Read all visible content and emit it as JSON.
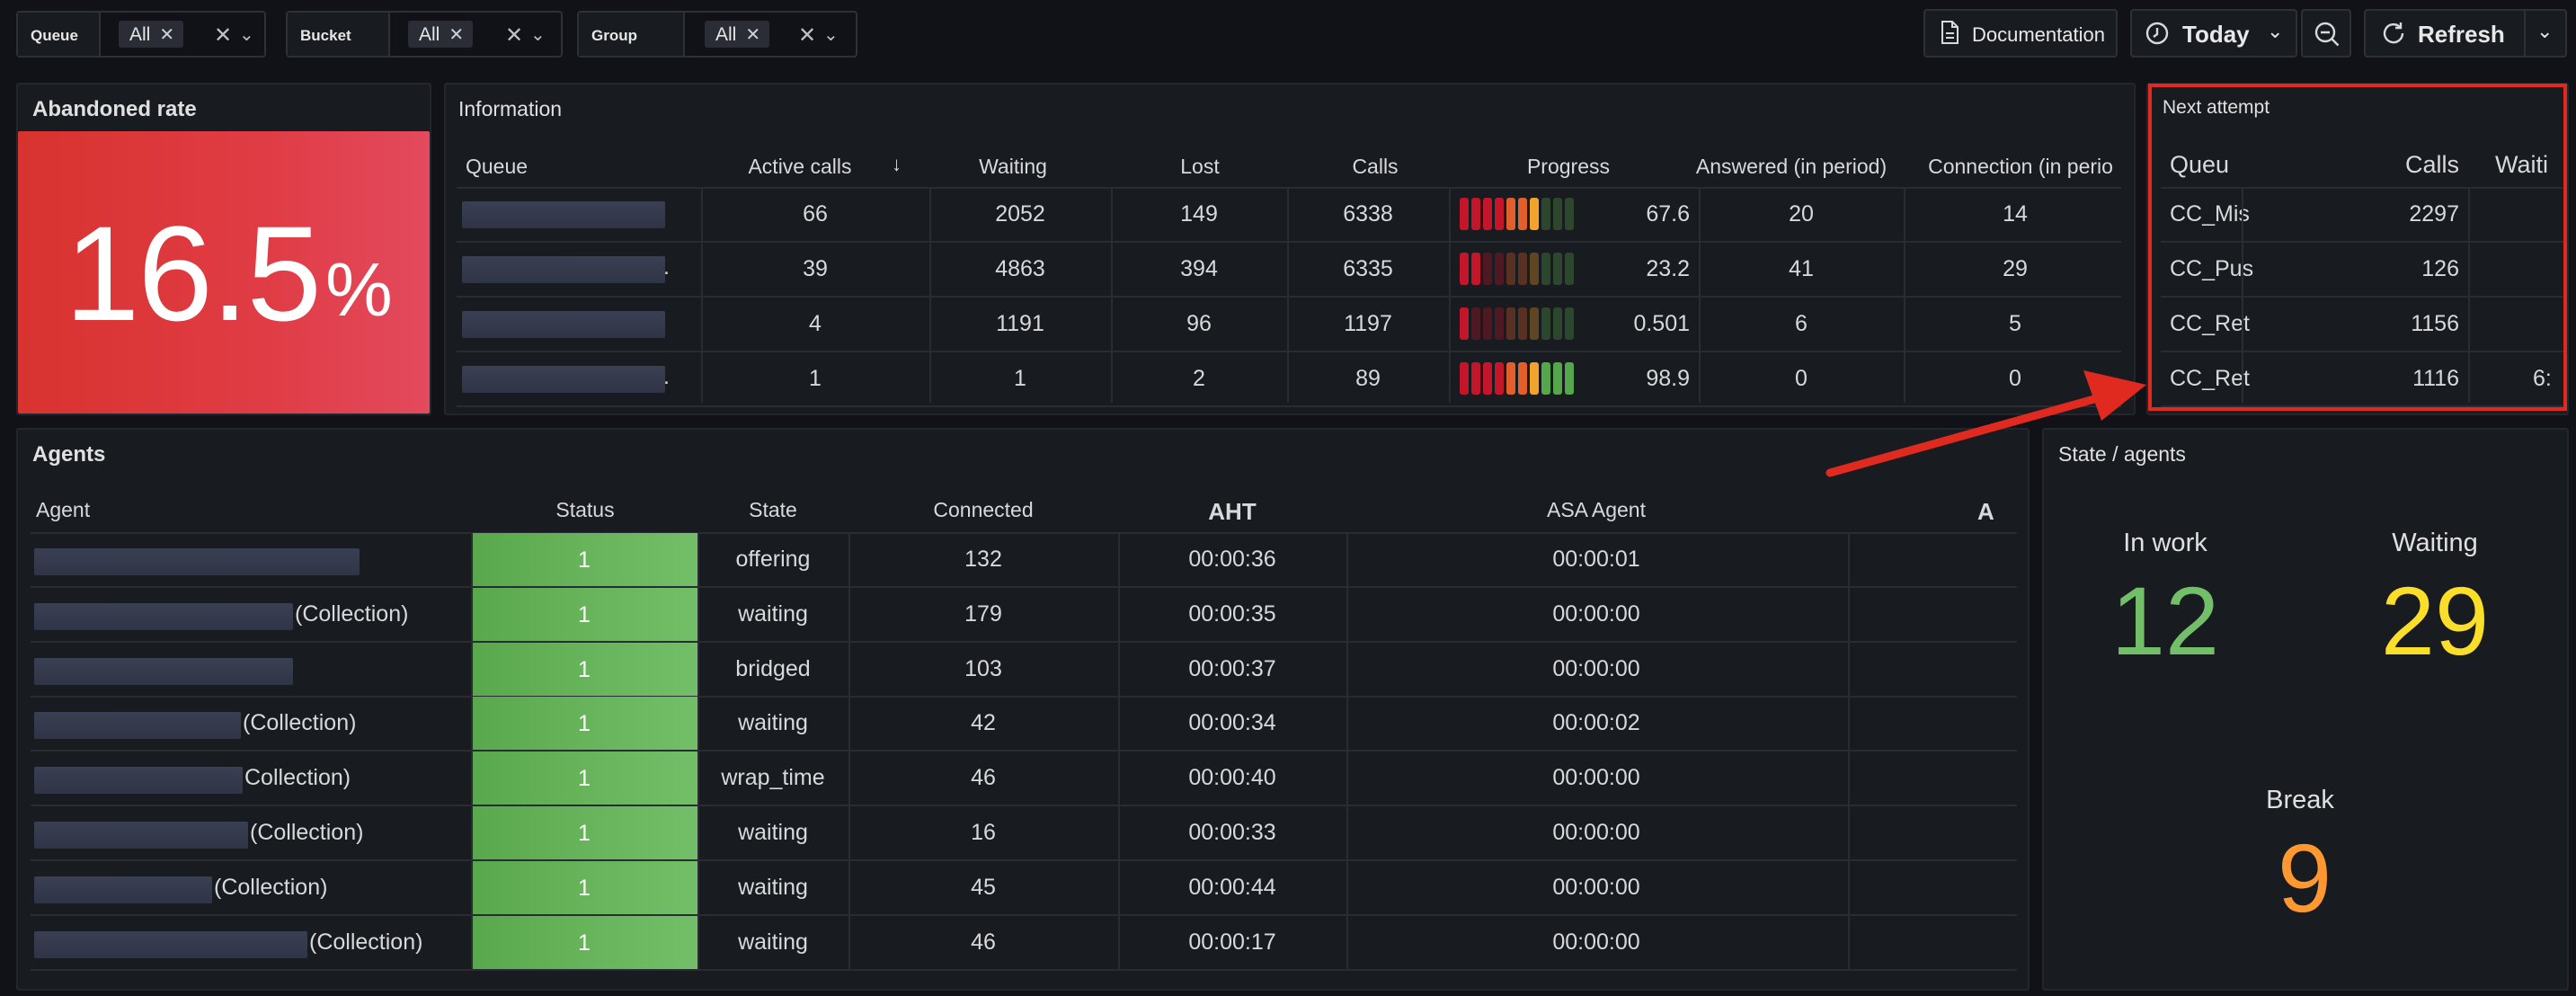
{
  "filters": [
    {
      "label": "Queue",
      "value": "All"
    },
    {
      "label": "Bucket",
      "value": "All"
    },
    {
      "label": "Group",
      "value": "All"
    }
  ],
  "toolbar": {
    "documentation": "Documentation",
    "time_range": "Today",
    "refresh": "Refresh"
  },
  "abandoned": {
    "title": "Abandoned rate",
    "value": "16.5",
    "unit": "%",
    "color": "#e03c45"
  },
  "information": {
    "title": "Information",
    "columns": [
      "Queue",
      "Active calls",
      "Waiting",
      "Lost",
      "Calls",
      "Progress",
      "Answered (in period)",
      "Connection (in perio"
    ],
    "rows": [
      {
        "active": "66",
        "waiting": "2052",
        "lost": "149",
        "calls": "6338",
        "progress": "67.6",
        "answered": "20",
        "connection": "14"
      },
      {
        "active": "39",
        "waiting": "4863",
        "lost": "394",
        "calls": "6335",
        "progress": "23.2",
        "answered": "41",
        "connection": "29"
      },
      {
        "active": "4",
        "waiting": "1191",
        "lost": "96",
        "calls": "1197",
        "progress": "0.501",
        "answered": "6",
        "connection": "5"
      },
      {
        "active": "1",
        "waiting": "1",
        "lost": "2",
        "calls": "89",
        "progress": "98.9",
        "answered": "0",
        "connection": "0"
      }
    ]
  },
  "next_attempt": {
    "title": "Next attempt",
    "columns": [
      "Queu",
      "Calls",
      "Waiti"
    ],
    "rows": [
      {
        "queue": "CC_Mis",
        "calls": "2297",
        "waiting": ""
      },
      {
        "queue": "CC_Pus",
        "calls": "126",
        "waiting": ""
      },
      {
        "queue": "CC_Ret",
        "calls": "1156",
        "waiting": ""
      },
      {
        "queue": "CC_Ret",
        "calls": "1116",
        "waiting": "6:"
      }
    ]
  },
  "agents": {
    "title": "Agents",
    "columns": [
      "Agent",
      "Status",
      "State",
      "Connected",
      "AHT",
      "ASA Agent",
      "A"
    ],
    "rows": [
      {
        "suffix": "",
        "status": "1",
        "state": "offering",
        "connected": "132",
        "aht": "00:00:36",
        "asa": "00:00:01"
      },
      {
        "suffix": "(Collection)",
        "status": "1",
        "state": "waiting",
        "connected": "179",
        "aht": "00:00:35",
        "asa": "00:00:00"
      },
      {
        "suffix": "",
        "status": "1",
        "state": "bridged",
        "connected": "103",
        "aht": "00:00:37",
        "asa": "00:00:00"
      },
      {
        "suffix": "(Collection)",
        "status": "1",
        "state": "waiting",
        "connected": "42",
        "aht": "00:00:34",
        "asa": "00:00:02"
      },
      {
        "suffix": "Collection)",
        "status": "1",
        "state": "wrap_time",
        "connected": "46",
        "aht": "00:00:40",
        "asa": "00:00:00"
      },
      {
        "suffix": "(Collection)",
        "status": "1",
        "state": "waiting",
        "connected": "16",
        "aht": "00:00:33",
        "asa": "00:00:00"
      },
      {
        "suffix": "(Collection)",
        "status": "1",
        "state": "waiting",
        "connected": "45",
        "aht": "00:00:44",
        "asa": "00:00:00"
      },
      {
        "suffix": "(Collection)",
        "status": "1",
        "state": "waiting",
        "connected": "46",
        "aht": "00:00:17",
        "asa": "00:00:00"
      }
    ]
  },
  "state_agents": {
    "title": "State / agents",
    "in_work": {
      "label": "In work",
      "value": "12",
      "color": "#73bf69"
    },
    "waiting": {
      "label": "Waiting",
      "value": "29",
      "color": "#fade2a"
    },
    "break": {
      "label": "Break",
      "value": "9",
      "color": "#ff9830"
    }
  },
  "icons": [
    "clear-icon",
    "chevron-down-icon",
    "document-icon",
    "clock-icon",
    "zoom-out-icon",
    "refresh-icon",
    "sort-desc-icon"
  ],
  "colors": {
    "background": "#111217",
    "panel": "#181b1f",
    "highlight": "#e02a20"
  }
}
